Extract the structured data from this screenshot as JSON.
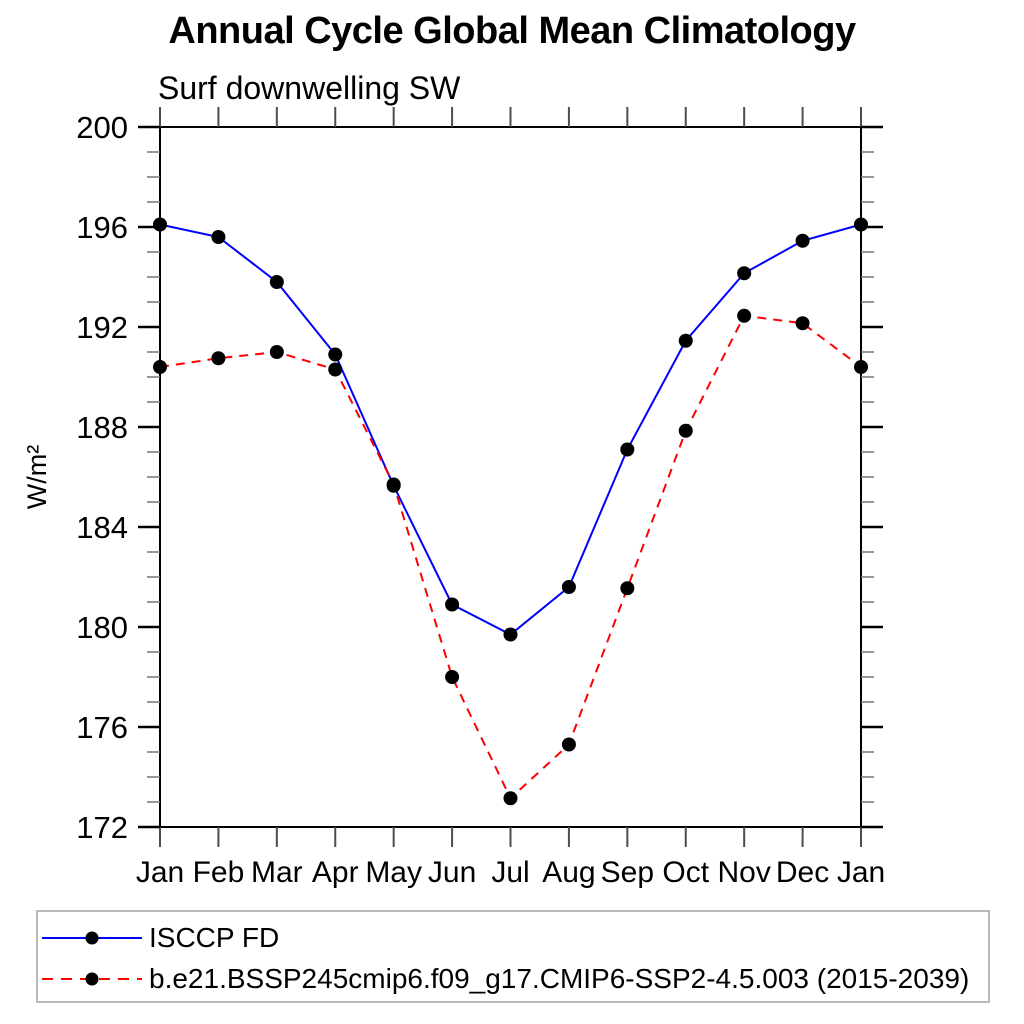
{
  "page": {
    "title": "Annual Cycle Global Mean Climatology",
    "subtitle": "Surf downwelling SW"
  },
  "chart_data": {
    "type": "line",
    "title": "Annual Cycle Global Mean Climatology",
    "subtitle": "Surf downwelling SW",
    "xlabel": "",
    "ylabel": "W/m²",
    "categories": [
      "Jan",
      "Feb",
      "Mar",
      "Apr",
      "May",
      "Jun",
      "Jul",
      "Aug",
      "Sep",
      "Oct",
      "Nov",
      "Dec",
      "Jan"
    ],
    "ylim": [
      172,
      200
    ],
    "ytick_major_step": 4,
    "ytick_minor_step": 1,
    "ytick_labels": [
      "172",
      "176",
      "180",
      "184",
      "188",
      "192",
      "196",
      "200"
    ],
    "grid": false,
    "legend_position": "bottom",
    "marker": {
      "shape": "circle",
      "color": "#000000"
    },
    "series": [
      {
        "name": "ISCCP FD",
        "color": "#0000ff",
        "style": "solid",
        "values": [
          196.1,
          195.6,
          193.8,
          190.9,
          185.65,
          180.9,
          179.7,
          181.6,
          187.1,
          191.45,
          194.15,
          195.45,
          196.1
        ]
      },
      {
        "name": "b.e21.BSSP245cmip6.f09_g17.CMIP6-SSP2-4.5.003 (2015-2039)",
        "color": "#ff0000",
        "style": "dashed",
        "values": [
          190.4,
          190.75,
          191.0,
          190.3,
          185.7,
          178.0,
          173.15,
          175.3,
          181.55,
          187.85,
          192.45,
          192.15,
          190.4
        ]
      }
    ]
  }
}
